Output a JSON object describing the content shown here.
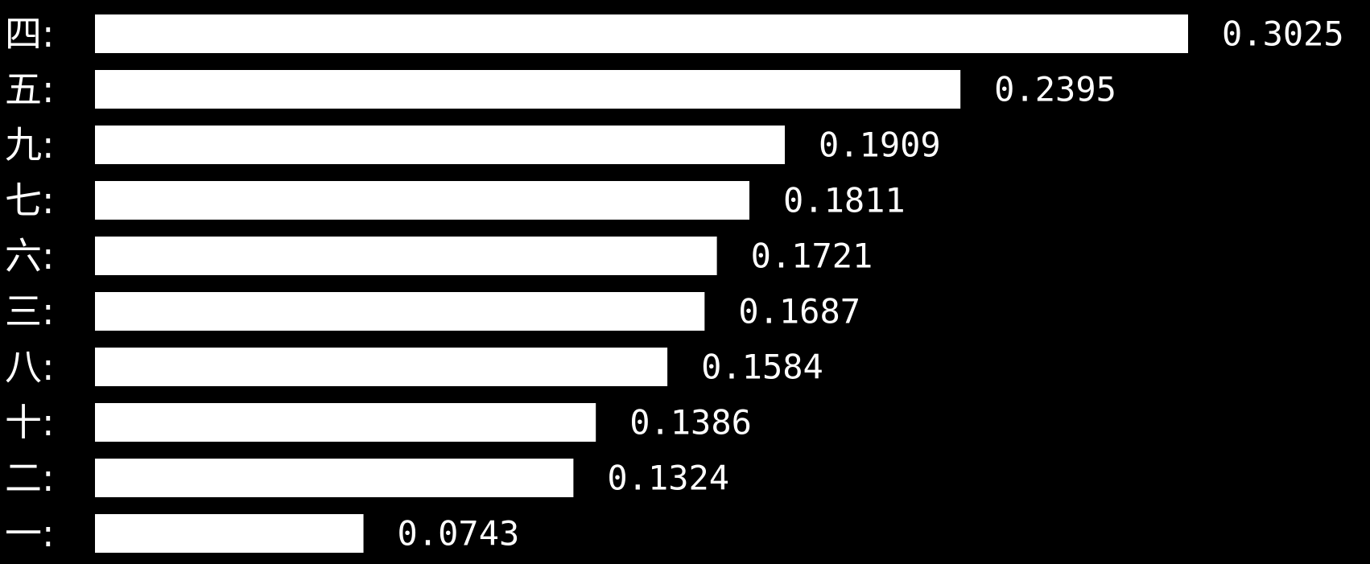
{
  "chart_data": {
    "type": "bar",
    "orientation": "horizontal",
    "categories": [
      "四:",
      "五:",
      "九:",
      "七:",
      "六:",
      "三:",
      "八:",
      "十:",
      "二:",
      "一:"
    ],
    "values": [
      0.3025,
      0.2395,
      0.1909,
      0.1811,
      0.1721,
      0.1687,
      0.1584,
      0.1386,
      0.1324,
      0.0743
    ],
    "value_labels": [
      "0.3025",
      "0.2395",
      "0.1909",
      "0.1811",
      "0.1721",
      "0.1687",
      "0.1584",
      "0.1386",
      "0.1324",
      "0.0743"
    ],
    "title": "",
    "xlabel": "",
    "ylabel": "",
    "xlim": [
      0,
      0.3025
    ],
    "grid": false,
    "legend": "none"
  },
  "colors": {
    "background": "#000000",
    "bar": "#ffffff",
    "text": "#ffffff"
  }
}
